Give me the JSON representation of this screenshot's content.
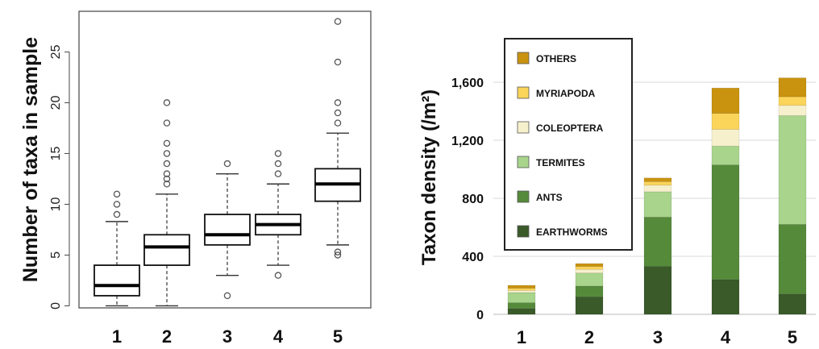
{
  "chart_data": [
    {
      "type": "box",
      "ylabel": "Number of taxa in sample",
      "xlabel": "",
      "categories": [
        "1",
        "2",
        "3",
        "4",
        "5"
      ],
      "ylim": [
        -0.2,
        29
      ],
      "yticks": [
        0,
        5,
        10,
        15,
        20,
        25
      ],
      "boxes": [
        {
          "category": "1",
          "whisker_low": 0,
          "q1": 1,
          "median": 2,
          "q3": 4,
          "whisker_high": 8.3,
          "outliers": [
            9,
            10,
            11
          ]
        },
        {
          "category": "2",
          "whisker_low": 0,
          "q1": 4,
          "median": 5.8,
          "q3": 7,
          "whisker_high": 11,
          "outliers": [
            12,
            12.5,
            13,
            14,
            15,
            16,
            18,
            20
          ]
        },
        {
          "category": "3",
          "whisker_low": 3,
          "q1": 6,
          "median": 7,
          "q3": 9,
          "whisker_high": 13,
          "outliers": [
            1,
            14
          ]
        },
        {
          "category": "4",
          "whisker_low": 4,
          "q1": 7,
          "median": 8,
          "q3": 9,
          "whisker_high": 12,
          "outliers": [
            3,
            13,
            14,
            15
          ]
        },
        {
          "category": "5",
          "whisker_low": 6,
          "q1": 10.3,
          "median": 12,
          "q3": 13.5,
          "whisker_high": 17,
          "outliers": [
            5,
            5.3,
            18,
            19,
            20,
            24,
            28
          ]
        }
      ]
    },
    {
      "type": "bar",
      "stacked": true,
      "ylabel": "Taxon density (/m²)",
      "xlabel": "",
      "categories": [
        "1",
        "2",
        "3",
        "4",
        "5"
      ],
      "ylim": [
        0,
        2000
      ],
      "yticks": [
        0,
        400,
        800,
        1200,
        1600
      ],
      "ytick_labels": [
        "0",
        "400",
        "800",
        "1,200",
        "1,600"
      ],
      "grid": true,
      "legend_position": "top-left",
      "series": [
        {
          "name": "EARTHWORMS",
          "color": "#3a5a2a",
          "values": [
            40,
            120,
            330,
            240,
            140
          ]
        },
        {
          "name": "ANTS",
          "color": "#558a3b",
          "values": [
            40,
            75,
            340,
            790,
            480
          ]
        },
        {
          "name": "TERMITES",
          "color": "#a8d48c",
          "values": [
            70,
            90,
            175,
            130,
            750
          ]
        },
        {
          "name": "COLEOPTERA",
          "color": "#f7f0cc",
          "values": [
            15,
            25,
            45,
            115,
            70
          ]
        },
        {
          "name": "MYRIAPODA",
          "color": "#fbd45a",
          "values": [
            15,
            20,
            25,
            110,
            60
          ]
        },
        {
          "name": "OTHERS",
          "color": "#c9930f",
          "values": [
            20,
            20,
            25,
            175,
            130
          ]
        }
      ]
    }
  ]
}
